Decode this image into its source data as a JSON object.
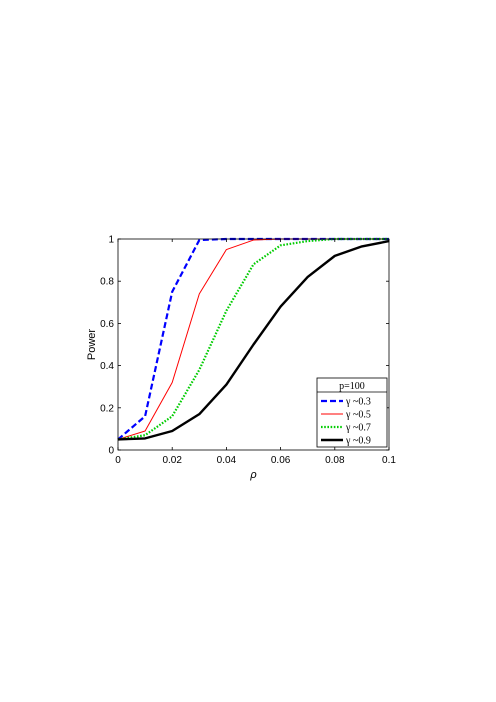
{
  "chart_data": {
    "type": "line",
    "xlabel": "ρ",
    "ylabel": "Power",
    "xlim": [
      0,
      0.1
    ],
    "ylim": [
      0,
      1
    ],
    "xticks": [
      0,
      0.02,
      0.04,
      0.06,
      0.08,
      0.1
    ],
    "xtick_labels": [
      "0",
      "0.02",
      "0.04",
      "0.06",
      "0.08",
      "0.1"
    ],
    "yticks": [
      0,
      0.2,
      0.4,
      0.6,
      0.8,
      1
    ],
    "ytick_labels": [
      "0",
      "0.2",
      "0.4",
      "0.6",
      "0.8",
      "1"
    ],
    "grid": false,
    "legend": {
      "title": "p=100",
      "placement": "bottom-right"
    },
    "x": [
      0,
      0.01,
      0.02,
      0.03,
      0.04,
      0.05,
      0.06,
      0.07,
      0.08,
      0.09,
      0.1
    ],
    "series": [
      {
        "name": "γ ~0.3",
        "color": "#0000ff",
        "style": "dashed",
        "values": [
          0.05,
          0.16,
          0.75,
          0.995,
          1.0,
          1.0,
          1.0,
          1.0,
          1.0,
          1.0,
          1.0
        ]
      },
      {
        "name": "γ ~0.5",
        "color": "#ff0000",
        "style": "solid-thin",
        "values": [
          0.05,
          0.09,
          0.32,
          0.74,
          0.95,
          0.995,
          1.0,
          1.0,
          1.0,
          1.0,
          1.0
        ]
      },
      {
        "name": "γ ~0.7",
        "color": "#00cc00",
        "style": "dotted",
        "values": [
          0.05,
          0.07,
          0.16,
          0.38,
          0.66,
          0.88,
          0.97,
          0.99,
          1.0,
          1.0,
          1.0
        ]
      },
      {
        "name": "γ ~0.9",
        "color": "#000000",
        "style": "solid-thick",
        "values": [
          0.05,
          0.055,
          0.09,
          0.17,
          0.31,
          0.5,
          0.68,
          0.82,
          0.92,
          0.965,
          0.99
        ]
      }
    ]
  }
}
